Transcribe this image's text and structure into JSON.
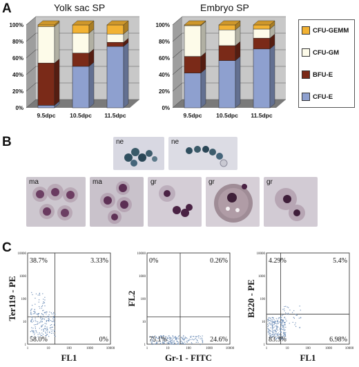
{
  "panels": {
    "a": "A",
    "b": "B",
    "c": "C"
  },
  "chart_data": [
    {
      "type": "bar",
      "title": "Yolk sac SP",
      "stacked": true,
      "categories": [
        "9.5dpc",
        "10.5dpc",
        "11.5dpc"
      ],
      "y_ticks": [
        "0%",
        "20%",
        "40%",
        "60%",
        "80%",
        "100%"
      ],
      "ylim": [
        0,
        100
      ],
      "series": [
        {
          "name": "CFU-E",
          "values": [
            3,
            50,
            74
          ]
        },
        {
          "name": "BFU-E",
          "values": [
            51,
            16,
            5
          ]
        },
        {
          "name": "CFU-GM",
          "values": [
            44,
            24,
            10
          ]
        },
        {
          "name": "CFU-GEMM",
          "values": [
            2,
            10,
            11
          ]
        }
      ]
    },
    {
      "type": "bar",
      "title": "Embryo SP",
      "stacked": true,
      "categories": [
        "9.5dpc",
        "10.5dpc",
        "11.5dpc"
      ],
      "y_ticks": [
        "0%",
        "20%",
        "40%",
        "60%",
        "80%",
        "100%"
      ],
      "ylim": [
        0,
        100
      ],
      "series": [
        {
          "name": "CFU-E",
          "values": [
            42,
            57,
            71
          ]
        },
        {
          "name": "BFU-E",
          "values": [
            20,
            18,
            13
          ]
        },
        {
          "name": "CFU-GM",
          "values": [
            37,
            19,
            11
          ]
        },
        {
          "name": "CFU-GEMM",
          "values": [
            1,
            6,
            5
          ]
        }
      ]
    }
  ],
  "colors": {
    "CFU-E": "#8ea0cf",
    "BFU-E": "#7a2a18",
    "CFU-GM": "#fdfbe9",
    "CFU-GEMM": "#f2b233"
  },
  "legend": [
    "CFU-GEMM",
    "CFU-GM",
    "BFU-E",
    "CFU-E"
  ],
  "cell_panels": {
    "row1": [
      "ne",
      "ne"
    ],
    "row2": [
      "ma",
      "ma",
      "gr",
      "gr",
      "gr"
    ]
  },
  "flow_plots": [
    {
      "ylabel": "Ter119 - PE",
      "xlabel": "FL1",
      "quadrants": {
        "ul": "38.7%",
        "ur": "3.33%",
        "ll": "58.0%",
        "lr": "0%"
      },
      "y_ticks": [
        "10000",
        "1000",
        "100",
        "10",
        "1"
      ],
      "x_ticks": [
        "1",
        "10",
        "100",
        "1000",
        "10000"
      ]
    },
    {
      "ylabel": "FL2",
      "xlabel": "Gr-1 - FITC",
      "quadrants": {
        "ul": "0%",
        "ur": "0.26%",
        "ll": "75.1%",
        "lr": "24.6%"
      },
      "y_ticks": [
        "10000",
        "1000",
        "100",
        "10",
        "1"
      ],
      "x_ticks": [
        "1",
        "10",
        "100",
        "1000",
        "10000"
      ]
    },
    {
      "ylabel": "B220 - PE",
      "xlabel": "FL1",
      "quadrants": {
        "ul": "4.29%",
        "ur": "5.4%",
        "ll": "83.3%",
        "lr": "6.98%"
      },
      "y_ticks": [
        "10000",
        "1000",
        "100",
        "10",
        "1"
      ],
      "x_ticks": [
        "1",
        "10",
        "100",
        "1000",
        "10000"
      ]
    }
  ]
}
